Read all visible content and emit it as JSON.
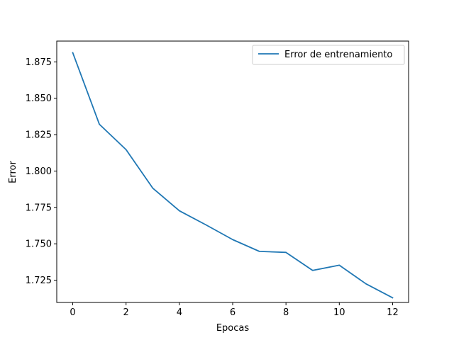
{
  "chart_data": {
    "type": "line",
    "title": "",
    "xlabel": "Epocas",
    "ylabel": "Error",
    "xlim": [
      -0.6,
      12.6
    ],
    "ylim": [
      1.7097,
      1.8893
    ],
    "xticks": [
      0,
      2,
      4,
      6,
      8,
      10,
      12
    ],
    "xtick_labels": [
      "0",
      "2",
      "4",
      "6",
      "8",
      "10",
      "12"
    ],
    "yticks": [
      1.725,
      1.75,
      1.775,
      1.8,
      1.825,
      1.85,
      1.875
    ],
    "ytick_labels": [
      "1.725",
      "1.750",
      "1.775",
      "1.800",
      "1.825",
      "1.850",
      "1.875"
    ],
    "grid": false,
    "legend_position": "upper right",
    "series": [
      {
        "name": "Error de entrenamiento",
        "color": "#1f77b4",
        "x": [
          0,
          1,
          2,
          3,
          4,
          5,
          6,
          7,
          8,
          9,
          10,
          11,
          12
        ],
        "values": [
          1.8813,
          1.8321,
          1.8147,
          1.7883,
          1.7727,
          1.763,
          1.7529,
          1.7448,
          1.7441,
          1.7317,
          1.7353,
          1.7225,
          1.7129
        ]
      }
    ]
  }
}
